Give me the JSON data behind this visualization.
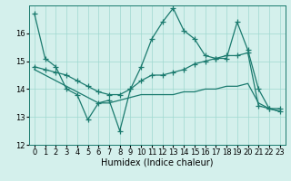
{
  "title": "",
  "xlabel": "Humidex (Indice chaleur)",
  "background_color": "#d4f0ec",
  "line_color": "#1a7a6e",
  "x": [
    0,
    1,
    2,
    3,
    4,
    5,
    6,
    7,
    8,
    9,
    10,
    11,
    12,
    13,
    14,
    15,
    16,
    17,
    18,
    19,
    20,
    21,
    22,
    23
  ],
  "series1": [
    16.7,
    15.1,
    14.8,
    14.0,
    13.8,
    12.9,
    13.5,
    13.6,
    12.5,
    14.0,
    14.8,
    15.8,
    16.4,
    16.9,
    16.1,
    15.8,
    15.2,
    15.1,
    15.1,
    16.4,
    15.4,
    14.0,
    13.3,
    13.2
  ],
  "series2": [
    14.8,
    14.7,
    14.6,
    14.5,
    14.3,
    14.1,
    13.9,
    13.8,
    13.8,
    14.0,
    14.3,
    14.5,
    14.5,
    14.6,
    14.7,
    14.9,
    15.0,
    15.1,
    15.2,
    15.2,
    15.3,
    13.4,
    13.3,
    13.3
  ],
  "series3": [
    14.7,
    14.5,
    14.3,
    14.1,
    13.9,
    13.7,
    13.5,
    13.5,
    13.6,
    13.7,
    13.8,
    13.8,
    13.8,
    13.8,
    13.9,
    13.9,
    14.0,
    14.0,
    14.1,
    14.1,
    14.2,
    13.5,
    13.3,
    13.2
  ],
  "ylim": [
    12,
    17
  ],
  "yticks": [
    12,
    13,
    14,
    15,
    16
  ],
  "xticks": [
    0,
    1,
    2,
    3,
    4,
    5,
    6,
    7,
    8,
    9,
    10,
    11,
    12,
    13,
    14,
    15,
    16,
    17,
    18,
    19,
    20,
    21,
    22,
    23
  ],
  "grid_color": "#a0d8d0",
  "marker": "+",
  "markersize": 4,
  "linewidth": 0.9,
  "xlabel_fontsize": 7,
  "tick_fontsize": 6
}
